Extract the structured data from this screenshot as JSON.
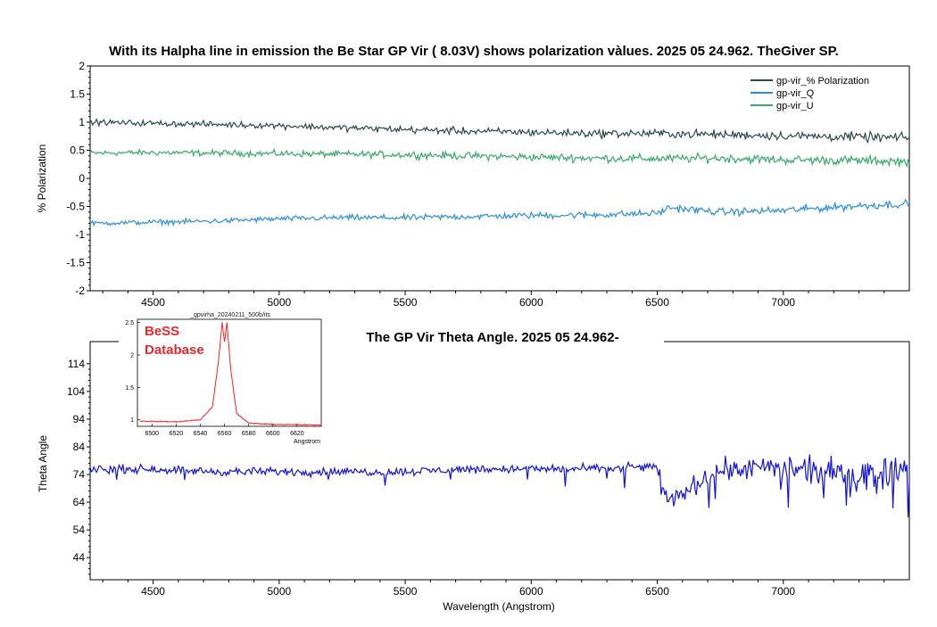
{
  "top_chart": {
    "title": "With its Halpha line in emission the Be Star  GP Vir ( 8.03V) shows polarization vàlues.  2025 05 24.962.  TheGiver SP.",
    "ylabel": "% Polarization",
    "y_ticks": [
      "2",
      "1.5",
      "1",
      "0.5",
      "0",
      "-0.5",
      "-1",
      "-1.5",
      "-2"
    ],
    "x_ticks": [
      "4500",
      "5000",
      "5500",
      "6000",
      "6500",
      "7000"
    ],
    "legend": [
      "gp-vir_% Polarization",
      "gp-vir_Q",
      "gp-vir_U"
    ]
  },
  "bottom_chart": {
    "title": "The GP Vir Theta Angle. 2025 05 24.962-",
    "ylabel": "Theta  Angle",
    "xlabel": "Wavelength (Angstrom)",
    "y_ticks": [
      "114",
      "104",
      "94",
      "84",
      "74",
      "64",
      "54",
      "44"
    ],
    "x_ticks": [
      "4500",
      "5000",
      "5500",
      "6000",
      "6500",
      "7000"
    ]
  },
  "inset": {
    "title": "_gpvirha_20240211_500b/its",
    "logo_line1": "BeSS",
    "logo_line2": "Database",
    "y_ticks": [
      "2.5",
      "2",
      "1.5",
      "1"
    ],
    "x_ticks": [
      "6500",
      "6520",
      "6540",
      "6560",
      "6580",
      "6600",
      "6620"
    ],
    "xlabel": "Angstrom"
  },
  "colors": {
    "polarization": "#2d4a4a",
    "q": "#2b8fe0",
    "u": "#3aaa6a",
    "theta": "#1414d8",
    "inset_line": "#ff2020",
    "inset_logo": "#e8282c"
  },
  "chart_data": [
    {
      "type": "line",
      "title": "With its Halpha line in emission the Be Star  GP Vir ( 8.03V) shows polarization vàlues.  2025 05 24.962.  TheGiver SP.",
      "xlabel": "",
      "ylabel": "% Polarization",
      "xlim": [
        4250,
        7500
      ],
      "ylim": [
        -2,
        2
      ],
      "grid": false,
      "legend_position": "top-right",
      "series": [
        {
          "name": "gp-vir_% Polarization",
          "x": [
            4250,
            4500,
            4750,
            5000,
            5250,
            5500,
            5750,
            6000,
            6250,
            6500,
            6750,
            7000,
            7250,
            7500
          ],
          "y": [
            1.0,
            0.98,
            0.96,
            0.94,
            0.9,
            0.87,
            0.84,
            0.82,
            0.8,
            0.8,
            0.78,
            0.76,
            0.74,
            0.72
          ]
        },
        {
          "name": "gp-vir_Q",
          "x": [
            4250,
            4500,
            4750,
            5000,
            5250,
            5500,
            5750,
            6000,
            6250,
            6500,
            6550,
            6750,
            7000,
            7250,
            7500
          ],
          "y": [
            -0.8,
            -0.78,
            -0.76,
            -0.72,
            -0.7,
            -0.7,
            -0.68,
            -0.66,
            -0.65,
            -0.62,
            -0.52,
            -0.6,
            -0.57,
            -0.5,
            -0.45
          ]
        },
        {
          "name": "gp-vir_U",
          "x": [
            4250,
            4500,
            4750,
            5000,
            5250,
            5500,
            5750,
            6000,
            6250,
            6500,
            6750,
            7000,
            7250,
            7500
          ],
          "y": [
            0.45,
            0.46,
            0.45,
            0.44,
            0.43,
            0.42,
            0.4,
            0.38,
            0.36,
            0.35,
            0.36,
            0.33,
            0.32,
            0.3
          ]
        }
      ]
    },
    {
      "type": "line",
      "title": "The GP Vir Theta Angle. 2025 05 24.962-",
      "xlabel": "Wavelength (Angstrom)",
      "ylabel": "Theta  Angle",
      "xlim": [
        4250,
        7500
      ],
      "ylim": [
        36,
        122
      ],
      "grid": false,
      "series": [
        {
          "name": "",
          "x": [
            4250,
            4500,
            4750,
            5000,
            5250,
            5500,
            5750,
            6000,
            6250,
            6500,
            6540,
            6750,
            7000,
            7250,
            7500
          ],
          "y": [
            76,
            76,
            75,
            75,
            75,
            75,
            76,
            76,
            76,
            77,
            64,
            76,
            76,
            74,
            76
          ]
        }
      ]
    },
    {
      "type": "line",
      "title": "_gpvirha_20240211_500b/its",
      "xlabel": "Angstrom",
      "ylabel": "",
      "xlim": [
        6488,
        6640
      ],
      "ylim": [
        0.9,
        2.55
      ],
      "series": [
        {
          "name": "",
          "x": [
            6490,
            6520,
            6540,
            6550,
            6555,
            6558,
            6560,
            6562,
            6565,
            6570,
            6580,
            6600,
            6640
          ],
          "y": [
            0.98,
            0.97,
            1.0,
            1.2,
            1.9,
            2.5,
            2.2,
            2.5,
            1.8,
            1.1,
            0.95,
            0.93,
            0.92
          ]
        }
      ]
    }
  ]
}
